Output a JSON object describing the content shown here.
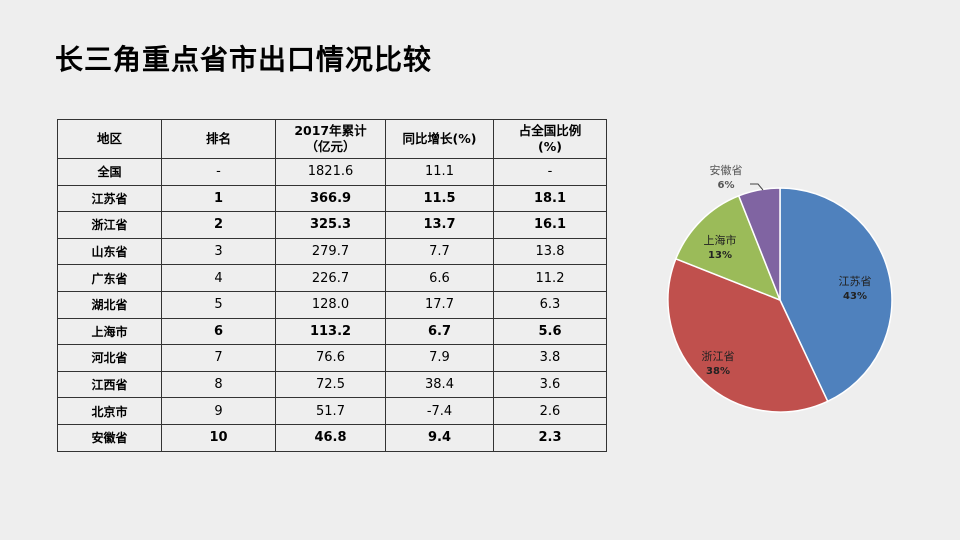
{
  "title": "长三角重点省市出口情况比较",
  "table": {
    "headers": [
      {
        "line1": "地区",
        "line2": ""
      },
      {
        "line1": "排名",
        "line2": ""
      },
      {
        "line1": "2017年累计",
        "line2": "（亿元）"
      },
      {
        "line1": "同比增长(%)",
        "line2": ""
      },
      {
        "line1": "占全国比例",
        "line2": "(%)"
      }
    ],
    "rows": [
      {
        "region": "全国",
        "rank": "-",
        "cumulative": "1821.6",
        "growth": "11.1",
        "share": "-",
        "bold": false
      },
      {
        "region": "江苏省",
        "rank": "1",
        "cumulative": "366.9",
        "growth": "11.5",
        "share": "18.1",
        "bold": true
      },
      {
        "region": "浙江省",
        "rank": "2",
        "cumulative": "325.3",
        "growth": "13.7",
        "share": "16.1",
        "bold": true
      },
      {
        "region": "山东省",
        "rank": "3",
        "cumulative": "279.7",
        "growth": "7.7",
        "share": "13.8",
        "bold": false
      },
      {
        "region": "广东省",
        "rank": "4",
        "cumulative": "226.7",
        "growth": "6.6",
        "share": "11.2",
        "bold": false
      },
      {
        "region": "湖北省",
        "rank": "5",
        "cumulative": "128.0",
        "growth": "17.7",
        "share": "6.3",
        "bold": false
      },
      {
        "region": "上海市",
        "rank": "6",
        "cumulative": "113.2",
        "growth": "6.7",
        "share": "5.6",
        "bold": true
      },
      {
        "region": "河北省",
        "rank": "7",
        "cumulative": "76.6",
        "growth": "7.9",
        "share": "3.8",
        "bold": false
      },
      {
        "region": "江西省",
        "rank": "8",
        "cumulative": "72.5",
        "growth": "38.4",
        "share": "3.6",
        "bold": false
      },
      {
        "region": "北京市",
        "rank": "9",
        "cumulative": "51.7",
        "growth": "-7.4",
        "share": "2.6",
        "bold": false
      },
      {
        "region": "安徽省",
        "rank": "10",
        "cumulative": "46.8",
        "growth": "9.4",
        "share": "2.3",
        "bold": true
      }
    ]
  },
  "chart_data": {
    "type": "pie",
    "slices": [
      {
        "label": "江苏省",
        "value": 43,
        "percent_label": "43%",
        "color": "#4f81bd"
      },
      {
        "label": "浙江省",
        "value": 38,
        "percent_label": "38%",
        "color": "#c0504d"
      },
      {
        "label": "上海市",
        "value": 13,
        "percent_label": "13%",
        "color": "#9bbb59"
      },
      {
        "label": "安徽省",
        "value": 6,
        "percent_label": "6%",
        "color": "#8064a2"
      }
    ]
  }
}
